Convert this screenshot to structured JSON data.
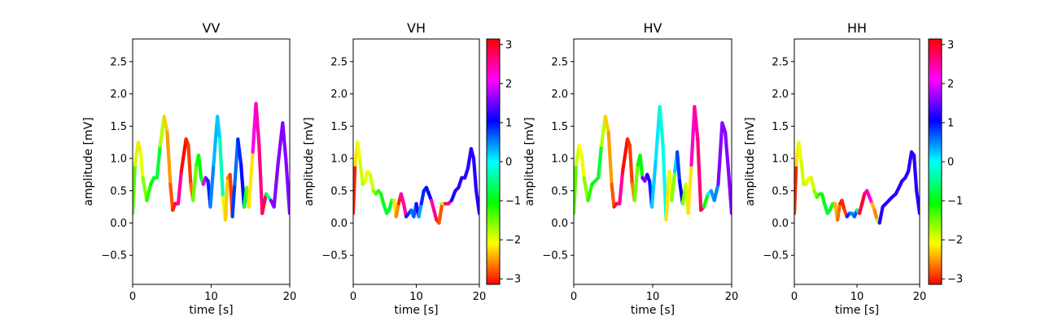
{
  "chart_data": [
    {
      "type": "line",
      "title": "VV",
      "xlabel": "time [s]",
      "ylabel": "amplitude [mV]",
      "xlim": [
        0,
        20
      ],
      "ylim": [
        -0.95,
        2.85
      ],
      "xticks": [
        0,
        10,
        20
      ],
      "yticks": [
        -0.5,
        0.0,
        0.5,
        1.0,
        1.5,
        2.0,
        2.5
      ],
      "grid": false,
      "colormap": "hsv",
      "color_value": "phase",
      "points": [
        [
          0,
          0.15
        ],
        [
          0.3,
          0.9
        ],
        [
          0.7,
          1.25
        ],
        [
          1,
          1.1
        ],
        [
          1.3,
          0.7
        ],
        [
          1.8,
          0.35
        ],
        [
          2.3,
          0.6
        ],
        [
          2.7,
          0.7
        ],
        [
          3.1,
          0.7
        ],
        [
          3.5,
          1.2
        ],
        [
          4,
          1.65
        ],
        [
          4.4,
          1.4
        ],
        [
          4.8,
          0.6
        ],
        [
          5.1,
          0.2
        ],
        [
          5.4,
          0.3
        ],
        [
          5.8,
          0.3
        ],
        [
          6.2,
          0.8
        ],
        [
          6.8,
          1.3
        ],
        [
          7.1,
          1.2
        ],
        [
          7.4,
          0.6
        ],
        [
          7.7,
          0.35
        ],
        [
          8.1,
          0.9
        ],
        [
          8.4,
          1.05
        ],
        [
          8.7,
          0.7
        ],
        [
          9.0,
          0.6
        ],
        [
          9.3,
          0.7
        ],
        [
          9.6,
          0.65
        ],
        [
          9.9,
          0.25
        ],
        [
          10.3,
          0.9
        ],
        [
          10.8,
          1.65
        ],
        [
          11.1,
          1.3
        ],
        [
          11.5,
          0.4
        ],
        [
          11.8,
          0.05
        ],
        [
          12.1,
          0.7
        ],
        [
          12.4,
          0.75
        ],
        [
          12.7,
          0.1
        ],
        [
          13.0,
          0.6
        ],
        [
          13.4,
          1.3
        ],
        [
          13.8,
          0.9
        ],
        [
          14.2,
          0.25
        ],
        [
          14.5,
          0.55
        ],
        [
          14.8,
          0.25
        ],
        [
          15.3,
          1.1
        ],
        [
          15.7,
          1.85
        ],
        [
          16.1,
          1.2
        ],
        [
          16.5,
          0.15
        ],
        [
          17,
          0.45
        ],
        [
          17.3,
          0.4
        ],
        [
          17.6,
          0.35
        ],
        [
          18,
          0.25
        ],
        [
          18.5,
          0.9
        ],
        [
          19.1,
          1.55
        ],
        [
          19.5,
          1.0
        ],
        [
          20,
          0.15
        ]
      ],
      "phase": [
        -1.4,
        -1.9,
        -2.2,
        -2.0,
        -1.6,
        -1.2,
        -1.0,
        -0.9,
        -0.8,
        -1.8,
        -2.3,
        -2.5,
        -2.8,
        -3.0,
        2.8,
        2.5,
        -3.1,
        -3.0,
        -2.9,
        -2.7,
        -1.5,
        -1.2,
        -1.0,
        -0.9,
        2.0,
        1.5,
        0.9,
        0.5,
        0.3,
        0.2,
        -0.3,
        -2.0,
        -2.3,
        -2.6,
        -2.9,
        0.8,
        0.6,
        0.9,
        1.0,
        -0.8,
        -1.5,
        -2.2,
        2.2,
        2.4,
        2.6,
        2.8,
        -0.7,
        -0.3,
        1.6,
        1.6,
        1.6,
        1.6,
        1.6,
        1.6
      ]
    },
    {
      "type": "line",
      "title": "VH",
      "xlabel": "time [s]",
      "ylabel": "amplitude [mV]",
      "xlim": [
        0,
        20
      ],
      "ylim": [
        -0.95,
        2.85
      ],
      "xticks": [
        0,
        10,
        20
      ],
      "yticks": [
        -0.5,
        0.0,
        0.5,
        1.0,
        1.5,
        2.0,
        2.5
      ],
      "grid": false,
      "colormap": "hsv",
      "color_value": "phase",
      "points": [
        [
          0,
          0.15
        ],
        [
          0.3,
          0.9
        ],
        [
          0.7,
          1.25
        ],
        [
          1.1,
          0.95
        ],
        [
          1.5,
          0.6
        ],
        [
          1.9,
          0.65
        ],
        [
          2.3,
          0.8
        ],
        [
          2.7,
          0.75
        ],
        [
          3.2,
          0.5
        ],
        [
          3.6,
          0.45
        ],
        [
          4,
          0.5
        ],
        [
          4.4,
          0.45
        ],
        [
          4.8,
          0.3
        ],
        [
          5.3,
          0.15
        ],
        [
          5.7,
          0.2
        ],
        [
          6.1,
          0.35
        ],
        [
          6.5,
          0.35
        ],
        [
          6.8,
          0.1
        ],
        [
          7.2,
          0.3
        ],
        [
          7.6,
          0.45
        ],
        [
          8,
          0.3
        ],
        [
          8.4,
          0.1
        ],
        [
          8.8,
          0.15
        ],
        [
          9.2,
          0.2
        ],
        [
          9.6,
          0.1
        ],
        [
          10.0,
          0.3
        ],
        [
          10.4,
          0.1
        ],
        [
          10.8,
          0.3
        ],
        [
          11.2,
          0.5
        ],
        [
          11.6,
          0.55
        ],
        [
          12.0,
          0.45
        ],
        [
          12.4,
          0.35
        ],
        [
          12.8,
          0.2
        ],
        [
          13.2,
          0.05
        ],
        [
          13.6,
          0.0
        ],
        [
          14.1,
          0.3
        ],
        [
          14.6,
          0.3
        ],
        [
          15.1,
          0.3
        ],
        [
          15.6,
          0.35
        ],
        [
          16.2,
          0.5
        ],
        [
          16.7,
          0.55
        ],
        [
          17.2,
          0.7
        ],
        [
          17.7,
          0.7
        ],
        [
          18.2,
          0.85
        ],
        [
          18.7,
          1.15
        ],
        [
          19.1,
          1.0
        ],
        [
          19.5,
          0.5
        ],
        [
          20,
          0.15
        ]
      ],
      "phase": [
        -3.0,
        -2.2,
        -2.0,
        -1.9,
        -1.8,
        -2.0,
        -2.1,
        -1.9,
        -1.6,
        -1.3,
        -1.2,
        -1.1,
        -0.9,
        -0.8,
        -0.9,
        -1.3,
        -2.2,
        -2.6,
        -3.0,
        2.4,
        2.5,
        1.2,
        0.8,
        0.6,
        0.7,
        1.2,
        0.4,
        0.9,
        0.9,
        1.0,
        1.1,
        2.4,
        2.6,
        -3.0,
        -2.8,
        -1.8,
        2.8,
        2.5,
        1.2,
        1.2,
        1.2,
        1.2,
        1.2,
        1.2,
        1.2,
        1.2,
        1.2,
        1.2
      ]
    },
    {
      "type": "line",
      "title": "HV",
      "xlabel": "time [s]",
      "ylabel": "amplitude [mV]",
      "xlim": [
        0,
        20
      ],
      "ylim": [
        -0.95,
        2.85
      ],
      "xticks": [
        0,
        10,
        20
      ],
      "yticks": [
        -0.5,
        0.0,
        0.5,
        1.0,
        1.5,
        2.0,
        2.5
      ],
      "grid": false,
      "colormap": "hsv",
      "color_value": "phase",
      "points": [
        [
          0,
          0.15
        ],
        [
          0.3,
          0.9
        ],
        [
          0.7,
          1.2
        ],
        [
          1,
          1.05
        ],
        [
          1.3,
          0.7
        ],
        [
          1.8,
          0.35
        ],
        [
          2.3,
          0.6
        ],
        [
          2.7,
          0.65
        ],
        [
          3.1,
          0.7
        ],
        [
          3.5,
          1.2
        ],
        [
          4,
          1.65
        ],
        [
          4.4,
          1.4
        ],
        [
          4.8,
          0.6
        ],
        [
          5.1,
          0.25
        ],
        [
          5.4,
          0.3
        ],
        [
          5.8,
          0.3
        ],
        [
          6.2,
          0.8
        ],
        [
          6.8,
          1.3
        ],
        [
          7.1,
          1.2
        ],
        [
          7.4,
          0.6
        ],
        [
          7.7,
          0.35
        ],
        [
          8.1,
          0.9
        ],
        [
          8.4,
          1.05
        ],
        [
          8.7,
          0.7
        ],
        [
          9.0,
          0.65
        ],
        [
          9.3,
          0.75
        ],
        [
          9.6,
          0.65
        ],
        [
          9.9,
          0.25
        ],
        [
          10.4,
          1.0
        ],
        [
          10.9,
          1.8
        ],
        [
          11.3,
          1.2
        ],
        [
          11.7,
          0.05
        ],
        [
          12.1,
          0.8
        ],
        [
          12.4,
          0.35
        ],
        [
          12.8,
          0.8
        ],
        [
          13.1,
          1.1
        ],
        [
          13.4,
          0.65
        ],
        [
          13.8,
          0.3
        ],
        [
          14.2,
          0.6
        ],
        [
          14.5,
          0.15
        ],
        [
          14.9,
          0.9
        ],
        [
          15.3,
          1.8
        ],
        [
          15.7,
          1.3
        ],
        [
          16.1,
          0.2
        ],
        [
          16.5,
          0.25
        ],
        [
          17,
          0.45
        ],
        [
          17.4,
          0.5
        ],
        [
          17.8,
          0.35
        ],
        [
          18.3,
          0.6
        ],
        [
          18.8,
          1.55
        ],
        [
          19.2,
          1.4
        ],
        [
          19.6,
          0.8
        ],
        [
          20,
          0.15
        ]
      ],
      "phase": [
        -1.4,
        -1.9,
        -2.1,
        -2.0,
        -1.6,
        -1.2,
        -1.0,
        -0.9,
        -0.8,
        -1.8,
        -2.3,
        -2.5,
        -2.8,
        -3.0,
        2.7,
        2.5,
        -3.1,
        -3.0,
        -2.9,
        -2.6,
        -1.5,
        -1.1,
        -1.0,
        1.5,
        1.6,
        1.2,
        0.9,
        0.2,
        0.1,
        -0.2,
        -0.1,
        -2.2,
        -2.0,
        -1.6,
        0.2,
        0.8,
        1.0,
        -1.6,
        -1.9,
        -2.2,
        2.3,
        2.5,
        2.7,
        2.8,
        -1.0,
        0.0,
        0.4,
        0.5,
        1.6,
        1.6,
        1.6,
        1.6,
        1.6
      ]
    },
    {
      "type": "line",
      "title": "HH",
      "xlabel": "time [s]",
      "ylabel": "amplitude [mV]",
      "xlim": [
        0,
        20
      ],
      "ylim": [
        -0.95,
        2.85
      ],
      "xticks": [
        0,
        10,
        20
      ],
      "yticks": [
        -0.5,
        0.0,
        0.5,
        1.0,
        1.5,
        2.0,
        2.5
      ],
      "grid": false,
      "colormap": "hsv",
      "color_value": "phase",
      "points": [
        [
          0,
          0.15
        ],
        [
          0.3,
          0.9
        ],
        [
          0.7,
          1.25
        ],
        [
          1.1,
          0.95
        ],
        [
          1.5,
          0.6
        ],
        [
          1.9,
          0.6
        ],
        [
          2.3,
          0.7
        ],
        [
          2.7,
          0.7
        ],
        [
          3.2,
          0.5
        ],
        [
          3.6,
          0.4
        ],
        [
          4,
          0.45
        ],
        [
          4.4,
          0.45
        ],
        [
          4.8,
          0.3
        ],
        [
          5.3,
          0.15
        ],
        [
          5.7,
          0.2
        ],
        [
          6.1,
          0.3
        ],
        [
          6.5,
          0.3
        ],
        [
          6.9,
          0.05
        ],
        [
          7.3,
          0.3
        ],
        [
          7.6,
          0.35
        ],
        [
          8,
          0.2
        ],
        [
          8.4,
          0.1
        ],
        [
          8.8,
          0.15
        ],
        [
          9.2,
          0.15
        ],
        [
          9.6,
          0.1
        ],
        [
          10.0,
          0.2
        ],
        [
          10.4,
          0.15
        ],
        [
          10.8,
          0.3
        ],
        [
          11.2,
          0.45
        ],
        [
          11.6,
          0.5
        ],
        [
          12.0,
          0.4
        ],
        [
          12.4,
          0.3
        ],
        [
          12.8,
          0.2
        ],
        [
          13.2,
          0.05
        ],
        [
          13.6,
          0.0
        ],
        [
          14.1,
          0.25
        ],
        [
          14.6,
          0.3
        ],
        [
          15.1,
          0.35
        ],
        [
          15.6,
          0.4
        ],
        [
          16.2,
          0.45
        ],
        [
          16.7,
          0.55
        ],
        [
          17.2,
          0.65
        ],
        [
          17.7,
          0.7
        ],
        [
          18.2,
          0.8
        ],
        [
          18.7,
          1.1
        ],
        [
          19.1,
          1.05
        ],
        [
          19.5,
          0.5
        ],
        [
          20,
          0.15
        ]
      ],
      "phase": [
        -3.0,
        -2.2,
        -2.0,
        -1.9,
        -1.8,
        -2.0,
        -2.1,
        -1.9,
        -1.6,
        -1.3,
        -1.2,
        -1.1,
        -0.9,
        -0.8,
        -0.9,
        -1.3,
        -2.4,
        -2.7,
        -3.0,
        -3.0,
        -2.9,
        0.9,
        0.7,
        0.5,
        0.7,
        -0.5,
        2.9,
        3.0,
        2.6,
        2.4,
        2.2,
        -2.4,
        -2.6,
        -1.8,
        1.2,
        1.2,
        1.2,
        1.2,
        1.2,
        1.2,
        1.2,
        1.2,
        1.2,
        1.2,
        1.2,
        1.2,
        1.2,
        1.2
      ]
    }
  ],
  "colorbars": [
    {
      "ticks": [
        3,
        2,
        1,
        0,
        -1,
        -2,
        -3
      ],
      "range": [
        -3.14159,
        3.14159
      ]
    },
    {
      "ticks": [
        3,
        2,
        1,
        0,
        -1,
        -2,
        -3
      ],
      "range": [
        -3.14159,
        3.14159
      ]
    }
  ]
}
